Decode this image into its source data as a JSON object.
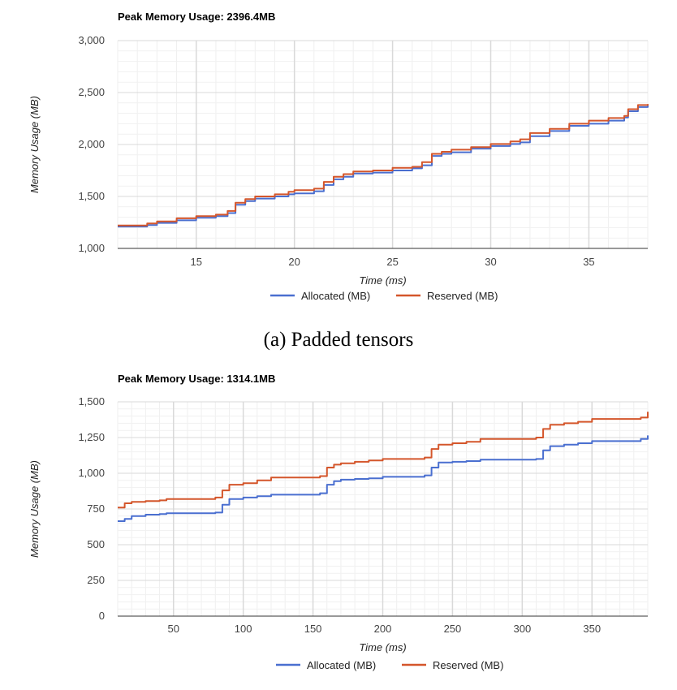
{
  "chart_data": [
    {
      "type": "line",
      "title": "Peak Memory Usage: 2396.4MB",
      "xlabel": "Time (ms)",
      "ylabel": "Memory Usage (MB)",
      "xlim": [
        11,
        38
      ],
      "ylim": [
        1000,
        3000
      ],
      "xticks": [
        15,
        20,
        25,
        30,
        35
      ],
      "yticks": [
        1000,
        1500,
        2000,
        2500,
        3000
      ],
      "xtick_labels": [
        "15",
        "20",
        "25",
        "30",
        "35"
      ],
      "ytick_labels": [
        "1,000",
        "1,500",
        "2,000",
        "2,500",
        "3,000"
      ],
      "grid": true,
      "legend": "bottom",
      "series": [
        {
          "name": "Allocated (MB)",
          "color": "#4a6fd0",
          "x": [
            11,
            12.5,
            13,
            14,
            15,
            16,
            16.6,
            17,
            17.5,
            18,
            19,
            19.7,
            20,
            21,
            21.5,
            22,
            22.5,
            23,
            24,
            25,
            26,
            26.5,
            27,
            27.5,
            28,
            29,
            30,
            31,
            31.5,
            32,
            33,
            34,
            35,
            36,
            36.8,
            37,
            37.5,
            38
          ],
          "values": [
            1210,
            1225,
            1245,
            1270,
            1295,
            1310,
            1340,
            1420,
            1455,
            1480,
            1500,
            1520,
            1530,
            1550,
            1610,
            1665,
            1690,
            1720,
            1730,
            1750,
            1770,
            1800,
            1890,
            1910,
            1925,
            1960,
            1985,
            2005,
            2020,
            2080,
            2130,
            2180,
            2200,
            2230,
            2260,
            2320,
            2360,
            2385
          ]
        },
        {
          "name": "Reserved (MB)",
          "color": "#d4562b",
          "x": [
            11,
            12.5,
            13,
            14,
            15,
            16,
            16.6,
            17,
            17.5,
            18,
            19,
            19.7,
            20,
            21,
            21.5,
            22,
            22.5,
            23,
            24,
            25,
            26,
            26.5,
            27,
            27.5,
            28,
            29,
            30,
            31,
            31.5,
            32,
            33,
            34,
            35,
            36,
            36.8,
            37,
            37.5,
            38
          ],
          "values": [
            1220,
            1240,
            1260,
            1290,
            1310,
            1325,
            1360,
            1440,
            1475,
            1500,
            1520,
            1545,
            1560,
            1575,
            1640,
            1690,
            1715,
            1740,
            1750,
            1775,
            1785,
            1830,
            1910,
            1930,
            1950,
            1975,
            2005,
            2030,
            2050,
            2110,
            2150,
            2200,
            2230,
            2255,
            2275,
            2340,
            2380,
            2390
          ]
        }
      ]
    },
    {
      "type": "line",
      "title": "Peak Memory Usage: 1314.1MB",
      "xlabel": "Time (ms)",
      "ylabel": "Memory Usage (MB)",
      "xlim": [
        10,
        390
      ],
      "ylim": [
        0,
        1500
      ],
      "xticks": [
        50,
        100,
        150,
        200,
        250,
        300,
        350
      ],
      "yticks": [
        0,
        250,
        500,
        750,
        1000,
        1250,
        1500
      ],
      "xtick_labels": [
        "50",
        "100",
        "150",
        "200",
        "250",
        "300",
        "350"
      ],
      "ytick_labels": [
        "0",
        "250",
        "500",
        "750",
        "1,000",
        "1,250",
        "1,500"
      ],
      "grid": true,
      "legend": "bottom",
      "series": [
        {
          "name": "Allocated (MB)",
          "color": "#4a6fd0",
          "x": [
            10,
            15,
            20,
            30,
            40,
            45,
            80,
            85,
            90,
            100,
            110,
            120,
            155,
            160,
            165,
            170,
            180,
            190,
            200,
            230,
            235,
            240,
            250,
            260,
            270,
            310,
            315,
            320,
            330,
            340,
            350,
            385,
            390
          ],
          "values": [
            665,
            680,
            700,
            710,
            715,
            720,
            725,
            780,
            820,
            830,
            840,
            850,
            860,
            920,
            945,
            955,
            960,
            965,
            975,
            985,
            1040,
            1075,
            1080,
            1085,
            1095,
            1100,
            1160,
            1190,
            1200,
            1210,
            1225,
            1240,
            1265
          ]
        },
        {
          "name": "Reserved (MB)",
          "color": "#d4562b",
          "x": [
            10,
            15,
            20,
            30,
            40,
            45,
            80,
            85,
            90,
            100,
            110,
            120,
            155,
            160,
            165,
            170,
            180,
            190,
            200,
            230,
            235,
            240,
            250,
            260,
            270,
            310,
            315,
            320,
            330,
            340,
            350,
            385,
            390
          ],
          "values": [
            760,
            790,
            800,
            805,
            810,
            820,
            830,
            880,
            920,
            930,
            950,
            970,
            980,
            1040,
            1060,
            1070,
            1080,
            1090,
            1100,
            1110,
            1170,
            1200,
            1210,
            1220,
            1240,
            1250,
            1310,
            1340,
            1350,
            1360,
            1380,
            1390,
            1430
          ]
        }
      ]
    }
  ],
  "captions": {
    "a": "(a) Padded tensors"
  },
  "colors": {
    "grid": "#d9d9d9",
    "axis": "#333333"
  }
}
